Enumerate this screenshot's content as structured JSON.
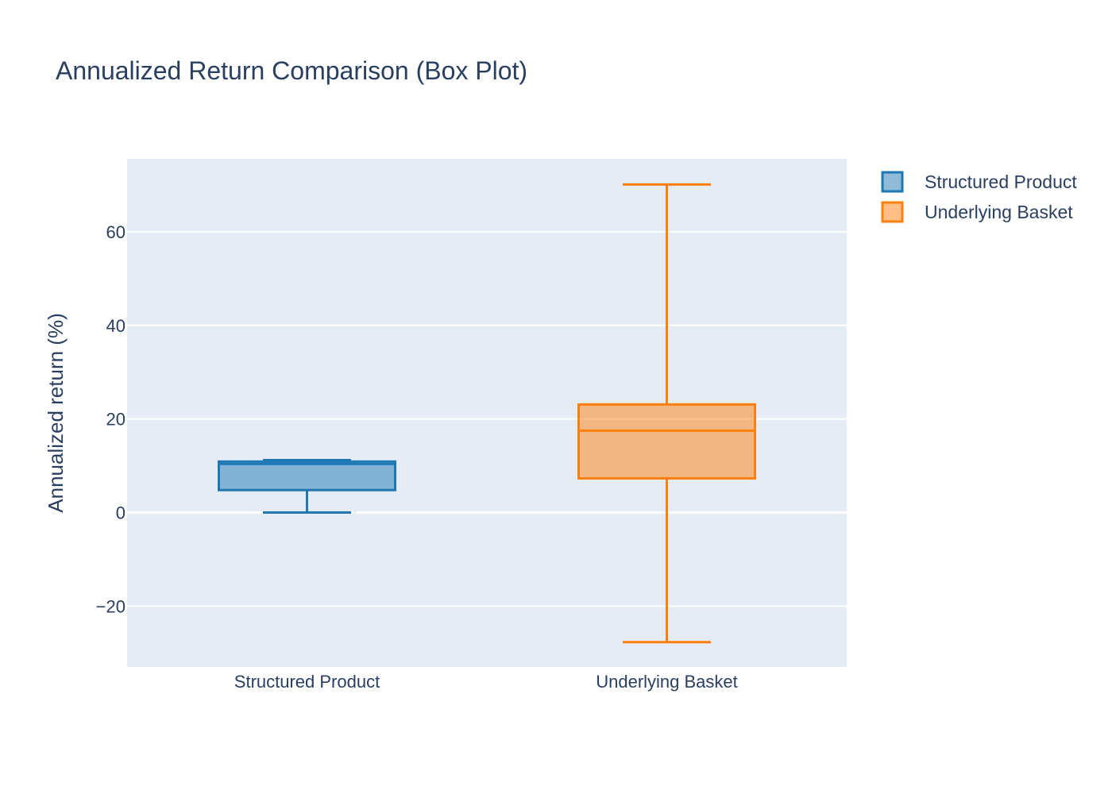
{
  "chart_data": {
    "type": "box",
    "title": "Annualized Return Comparison (Box Plot)",
    "xlabel": "",
    "ylabel": "Annualized return (%)",
    "ylim": [
      -33,
      75.6
    ],
    "y_ticks": [
      -20,
      0,
      20,
      40,
      60
    ],
    "y_tick_labels": [
      "−20",
      "0",
      "20",
      "40",
      "60"
    ],
    "grid": true,
    "legend_position": "top-right",
    "categories": [
      "Structured Product",
      "Underlying Basket"
    ],
    "series": [
      {
        "name": "Structured Product",
        "color": "#1f77b4",
        "fill": "rgba(31,119,180,0.5)",
        "min": 0,
        "q1": 4.8,
        "median": 10.4,
        "q3": 10.9,
        "max": 11.2
      },
      {
        "name": "Underlying Basket",
        "color": "#ff7f0e",
        "fill": "rgba(255,127,14,0.5)",
        "min": -27.7,
        "q1": 7.3,
        "median": 17.5,
        "q3": 23.1,
        "max": 70.1
      }
    ]
  }
}
